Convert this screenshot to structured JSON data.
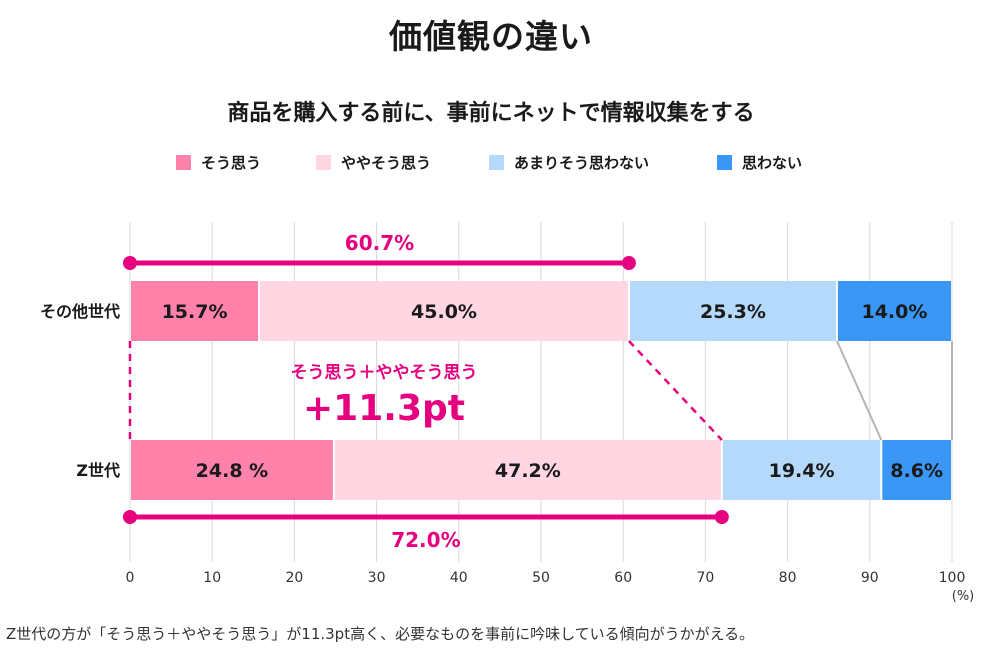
{
  "title": "価値観の違い",
  "subtitle": "商品を購入する前に、事前にネットで情報収集をする",
  "caption": "Z世代の方が「そう思う＋ややそう思う」が11.3pt高く、必要なものを事前に吟味している傾向がうかがえる。",
  "colors": {
    "strongly_agree": "#ff82aa",
    "somewhat_agree": "#ffd6e2",
    "somewhat_disagree": "#b4d9fb",
    "disagree": "#3a97f5",
    "accent": "#e6007f",
    "grid": "#d9d9d9",
    "connector": "#b5b5b5"
  },
  "legend": [
    {
      "label": "そう思う",
      "color_key": "strongly_agree"
    },
    {
      "label": "ややそう思う",
      "color_key": "somewhat_agree"
    },
    {
      "label": "あまりそう思わない",
      "color_key": "somewhat_disagree"
    },
    {
      "label": "思わない",
      "color_key": "disagree"
    }
  ],
  "chart_data": {
    "type": "bar",
    "orientation": "horizontal",
    "stacked": true,
    "categories": [
      "その他世代",
      "Z世代"
    ],
    "series": [
      {
        "name": "そう思う",
        "values": [
          15.7,
          24.8
        ],
        "labels": [
          "15.7%",
          "24.8 %"
        ]
      },
      {
        "name": "ややそう思う",
        "values": [
          45.0,
          47.2
        ],
        "labels": [
          "45.0%",
          "47.2%"
        ]
      },
      {
        "name": "あまりそう思わない",
        "values": [
          25.3,
          19.4
        ],
        "labels": [
          "25.3%",
          "19.4%"
        ]
      },
      {
        "name": "思わない",
        "values": [
          14.0,
          8.6
        ],
        "labels": [
          "14.0%",
          "8.6%"
        ]
      }
    ],
    "xlim": [
      0,
      100
    ],
    "xticks": [
      "0",
      "10",
      "20",
      "30",
      "40",
      "50",
      "60",
      "70",
      "80",
      "90",
      "100"
    ],
    "xunit": "(%)",
    "grid": true,
    "legend_position": "top",
    "brackets": [
      {
        "row": "その他世代",
        "from": 0,
        "to": 60.7,
        "label": "60.7%",
        "position": "above"
      },
      {
        "row": "Z世代",
        "from": 0,
        "to": 72.0,
        "label": "72.0%",
        "position": "below"
      }
    ],
    "annotation": {
      "line1": "そう思う＋ややそう思う",
      "line2": "+11.3pt"
    }
  }
}
